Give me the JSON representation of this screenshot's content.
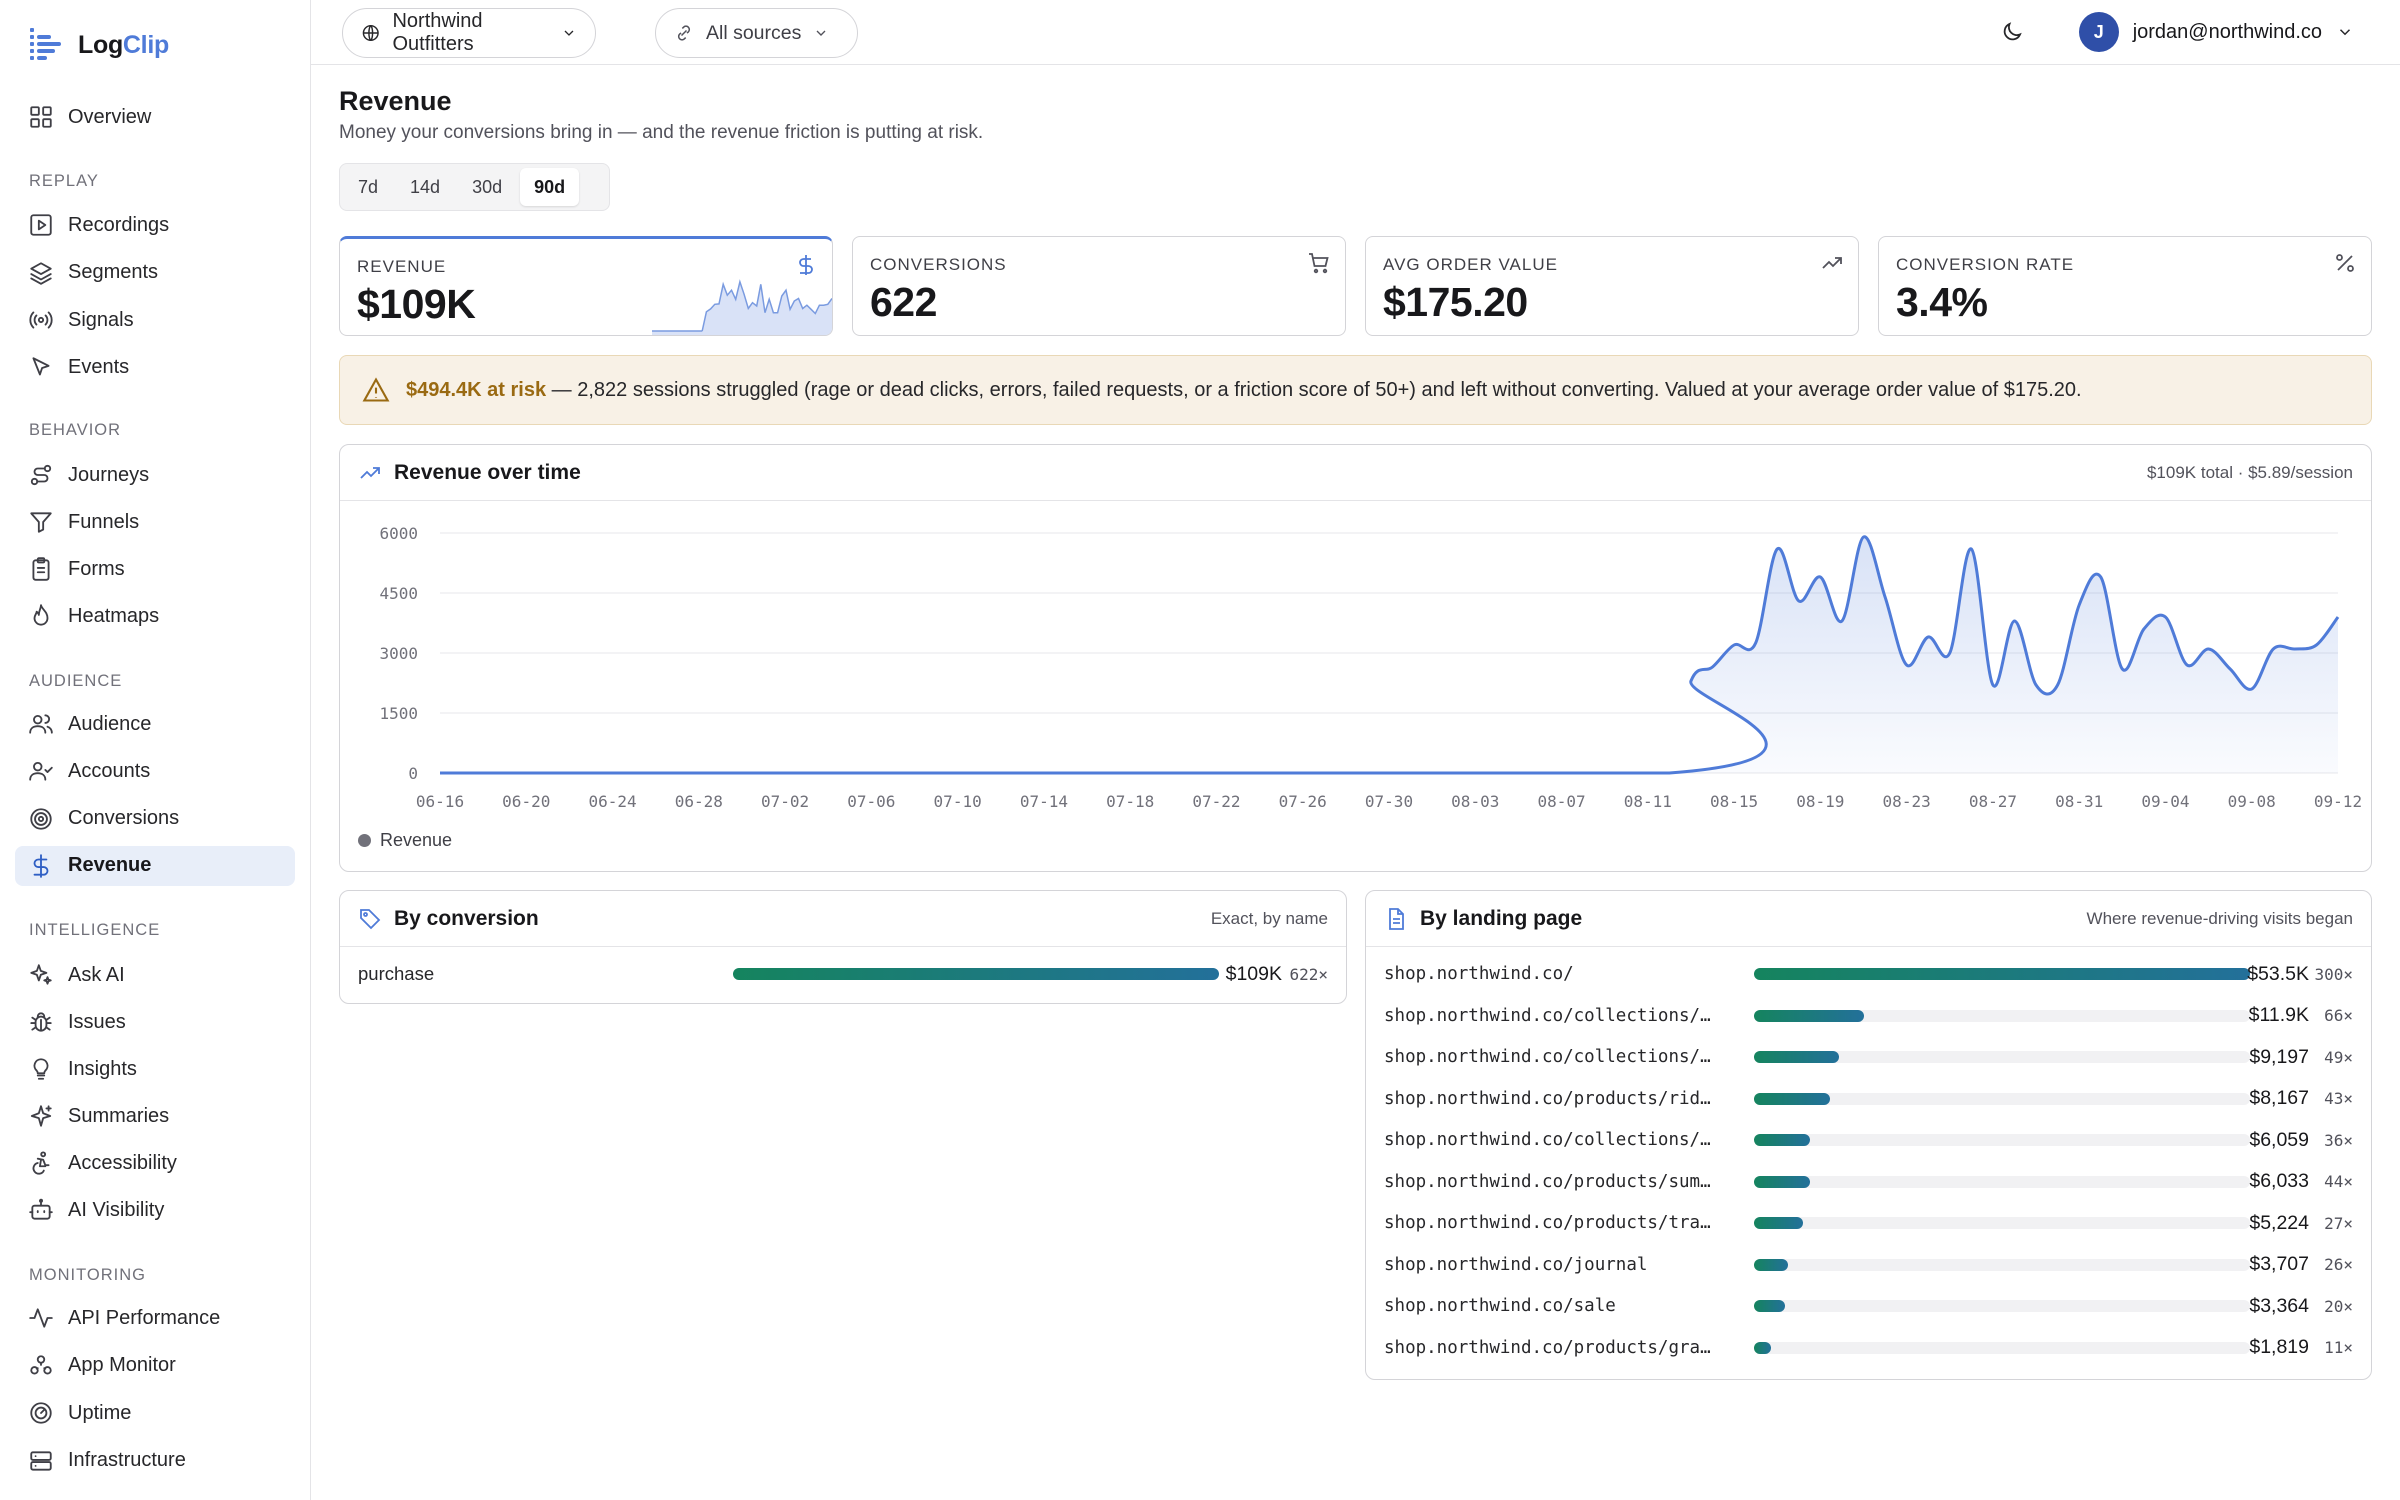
{
  "app": {
    "name_a": "Log",
    "name_b": "Clip"
  },
  "sidebar": {
    "top": [
      {
        "label": "Overview",
        "icon": "grid-icon"
      }
    ],
    "sections": [
      {
        "title": "REPLAY",
        "items": [
          {
            "label": "Recordings",
            "icon": "play-square-icon"
          },
          {
            "label": "Segments",
            "icon": "layers-icon"
          },
          {
            "label": "Signals",
            "icon": "radio-icon"
          },
          {
            "label": "Events",
            "icon": "pointer-icon"
          }
        ]
      },
      {
        "title": "BEHAVIOR",
        "items": [
          {
            "label": "Journeys",
            "icon": "route-icon"
          },
          {
            "label": "Funnels",
            "icon": "funnel-icon"
          },
          {
            "label": "Forms",
            "icon": "clipboard-icon"
          },
          {
            "label": "Heatmaps",
            "icon": "flame-icon"
          }
        ]
      },
      {
        "title": "AUDIENCE",
        "items": [
          {
            "label": "Audience",
            "icon": "users-icon"
          },
          {
            "label": "Accounts",
            "icon": "user-check-icon"
          },
          {
            "label": "Conversions",
            "icon": "target-icon"
          },
          {
            "label": "Revenue",
            "icon": "dollar-icon",
            "active": true
          }
        ]
      },
      {
        "title": "INTELLIGENCE",
        "items": [
          {
            "label": "Ask AI",
            "icon": "sparkles-icon"
          },
          {
            "label": "Issues",
            "icon": "bug-icon"
          },
          {
            "label": "Insights",
            "icon": "lightbulb-icon"
          },
          {
            "label": "Summaries",
            "icon": "sparkle-icon"
          },
          {
            "label": "Accessibility",
            "icon": "accessibility-icon"
          },
          {
            "label": "AI Visibility",
            "icon": "bot-icon"
          }
        ]
      },
      {
        "title": "MONITORING",
        "items": [
          {
            "label": "API Performance",
            "icon": "activity-icon"
          },
          {
            "label": "App Monitor",
            "icon": "cluster-icon"
          },
          {
            "label": "Uptime",
            "icon": "gauge-icon"
          },
          {
            "label": "Infrastructure",
            "icon": "server-icon"
          }
        ]
      }
    ]
  },
  "topbar": {
    "workspace": "Northwind Outfitters",
    "sources": "All sources",
    "user_initial": "J",
    "user_email": "jordan@northwind.co"
  },
  "page": {
    "title": "Revenue",
    "subtitle": "Money your conversions bring in — and the revenue friction is putting at risk.",
    "ranges": [
      "7d",
      "14d",
      "30d",
      "90d"
    ],
    "active_range": "90d"
  },
  "kpis": [
    {
      "label": "REVENUE",
      "value": "$109K",
      "icon": "dollar-icon"
    },
    {
      "label": "CONVERSIONS",
      "value": "622",
      "icon": "cart-icon"
    },
    {
      "label": "AVG ORDER VALUE",
      "value": "$175.20",
      "icon": "trending-up-icon"
    },
    {
      "label": "CONVERSION RATE",
      "value": "3.4%",
      "icon": "percent-icon"
    }
  ],
  "alert": {
    "strong": "$494.4K at risk",
    "text": " — 2,822 sessions struggled (rage or dead clicks, errors, failed requests, or a friction score of 50+) and left without converting. Valued at your average order value of $175.20."
  },
  "revenue_panel": {
    "title": "Revenue over time",
    "meta": "$109K total · $5.89/session",
    "legend": "Revenue"
  },
  "conversion_panel": {
    "title": "By conversion",
    "meta": "Exact, by name",
    "rows": [
      {
        "label": "purchase",
        "value": "$109K",
        "count": "622×",
        "share": 1.0
      }
    ]
  },
  "landing_panel": {
    "title": "By landing page",
    "meta": "Where revenue-driving visits began",
    "rows": [
      {
        "label": "shop.northwind.co/",
        "value": "$53.5K",
        "count": "300×",
        "share": 1.0
      },
      {
        "label": "shop.northwind.co/collections/…",
        "value": "$11.9K",
        "count": "66×",
        "share": 0.222
      },
      {
        "label": "shop.northwind.co/collections/…",
        "value": "$9,197",
        "count": "49×",
        "share": 0.172
      },
      {
        "label": "shop.northwind.co/products/rid…",
        "value": "$8,167",
        "count": "43×",
        "share": 0.153
      },
      {
        "label": "shop.northwind.co/collections/…",
        "value": "$6,059",
        "count": "36×",
        "share": 0.113
      },
      {
        "label": "shop.northwind.co/products/sum…",
        "value": "$6,033",
        "count": "44×",
        "share": 0.113
      },
      {
        "label": "shop.northwind.co/products/tra…",
        "value": "$5,224",
        "count": "27×",
        "share": 0.098
      },
      {
        "label": "shop.northwind.co/journal",
        "value": "$3,707",
        "count": "26×",
        "share": 0.069
      },
      {
        "label": "shop.northwind.co/sale",
        "value": "$3,364",
        "count": "20×",
        "share": 0.063
      },
      {
        "label": "shop.northwind.co/products/gra…",
        "value": "$1,819",
        "count": "11×",
        "share": 0.034
      }
    ]
  },
  "chart_data": {
    "type": "area",
    "title": "Revenue over time",
    "series": [
      {
        "name": "Revenue",
        "color": "#4f7bd8"
      }
    ],
    "x_ticks": [
      "06-16",
      "06-20",
      "06-24",
      "06-28",
      "07-02",
      "07-06",
      "07-10",
      "07-14",
      "07-18",
      "07-22",
      "07-26",
      "07-30",
      "08-03",
      "08-07",
      "08-11",
      "08-15",
      "08-19",
      "08-23",
      "08-27",
      "08-31",
      "09-04",
      "09-08",
      "09-12"
    ],
    "x_start": "06-16",
    "ylim": [
      0,
      6000
    ],
    "y_ticks": [
      0,
      1500,
      3000,
      4500,
      6000
    ],
    "grid": true,
    "points": [
      [
        "06-16",
        0
      ],
      [
        "08-12",
        0
      ],
      [
        "08-13",
        2300
      ],
      [
        "08-14",
        2650
      ],
      [
        "08-15",
        3200
      ],
      [
        "08-16",
        3250
      ],
      [
        "08-17",
        5600
      ],
      [
        "08-18",
        4300
      ],
      [
        "08-19",
        4900
      ],
      [
        "08-20",
        3800
      ],
      [
        "08-21",
        5900
      ],
      [
        "08-22",
        4400
      ],
      [
        "08-23",
        2700
      ],
      [
        "08-24",
        3400
      ],
      [
        "08-25",
        3000
      ],
      [
        "08-26",
        5600
      ],
      [
        "08-27",
        2200
      ],
      [
        "08-28",
        3800
      ],
      [
        "08-29",
        2200
      ],
      [
        "08-30",
        2200
      ],
      [
        "08-31",
        4200
      ],
      [
        "09-01",
        4900
      ],
      [
        "09-02",
        2600
      ],
      [
        "09-03",
        3600
      ],
      [
        "09-04",
        3900
      ],
      [
        "09-05",
        2700
      ],
      [
        "09-06",
        3100
      ],
      [
        "09-07",
        2600
      ],
      [
        "09-08",
        2100
      ],
      [
        "09-09",
        3100
      ],
      [
        "09-10",
        3100
      ],
      [
        "09-11",
        3200
      ],
      [
        "09-12",
        3900
      ]
    ]
  }
}
